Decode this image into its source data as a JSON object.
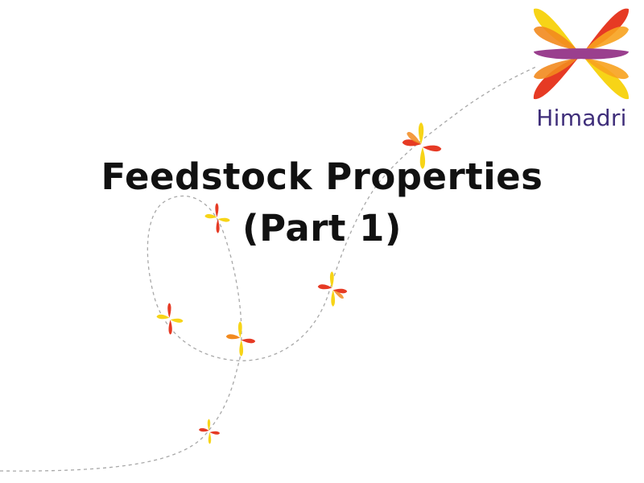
{
  "slide": {
    "title_line1": "Feedstock Properties",
    "title_line2": "(Part 1)"
  },
  "logo": {
    "name": "Himadri",
    "icon": "butterfly-logo-icon",
    "text_color": "#3f2e7a"
  },
  "decorations": {
    "butterfly_icon": "butterfly-icon",
    "butterfly_count": 7,
    "path_style": "dashed",
    "path_color": "#a8a8a8"
  },
  "colors": {
    "red": "#e63a24",
    "orange": "#f28a1e",
    "yellow": "#f7d417",
    "purple": "#9a3f8e"
  }
}
